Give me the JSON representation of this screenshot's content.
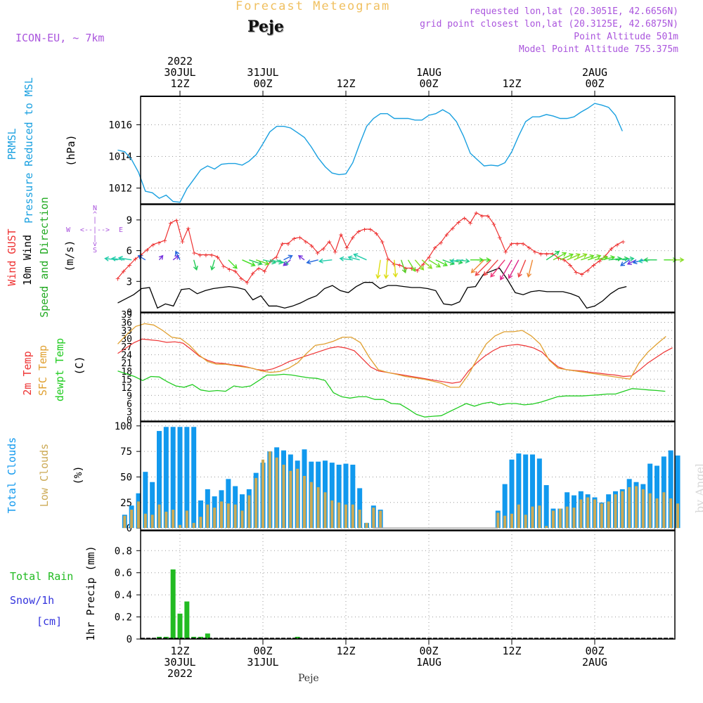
{
  "header": {
    "title": "Forecast Meteogram",
    "location": "Peje",
    "model": "ICON-EU, ~ 7km",
    "requested": "requested lon,lat (20.3051E, 42.6656N)",
    "grid": "grid point closest lon,lat (20.3125E, 42.6875N)",
    "point_alt": "Point Altitude 501m",
    "model_alt": "Model Point Altitude 755.375m",
    "footer": "Peje",
    "watermark": "by Angel"
  },
  "colors": {
    "pressure": "#1aa0e0",
    "gust": "#ee3333",
    "wind": "#000000",
    "temp2m": "#ee3333",
    "sfctemp": "#e0a030",
    "dewpt": "#22cc22",
    "totalcloud": "#1199ee",
    "lowcloud": "#ccaa55",
    "rain": "#22bb22",
    "snow": "#3333dd",
    "info": "#aa55dd",
    "grid": "#999999"
  },
  "chart_data": [
    {
      "type": "line",
      "title": "PRMSL Pressure Reduced to MSL",
      "ylabel": "(hPa)",
      "ylim": [
        1011,
        1017.8
      ],
      "yticks": [
        1012,
        1014,
        1016
      ],
      "x_start_hour": 3,
      "x_step_hours": 1,
      "series": [
        {
          "name": "PRMSL Pressure Reduced to MSL",
          "values": [
            1014.4,
            1014.3,
            1013.8,
            1013.0,
            1011.8,
            1011.7,
            1011.35,
            1011.55,
            1011.15,
            1011.1,
            1011.95,
            1012.55,
            1013.15,
            1013.4,
            1013.2,
            1013.5,
            1013.55,
            1013.55,
            1013.45,
            1013.7,
            1014.1,
            1014.8,
            1015.55,
            1015.9,
            1015.9,
            1015.8,
            1015.5,
            1015.2,
            1014.6,
            1013.9,
            1013.35,
            1012.95,
            1012.85,
            1012.9,
            1013.6,
            1014.8,
            1015.9,
            1016.4,
            1016.7,
            1016.7,
            1016.4,
            1016.4,
            1016.4,
            1016.3,
            1016.3,
            1016.6,
            1016.7,
            1016.95,
            1016.7,
            1016.2,
            1015.3,
            1014.2,
            1013.8,
            1013.4,
            1013.45,
            1013.4,
            1013.6,
            1014.3,
            1015.3,
            1016.2,
            1016.5,
            1016.5,
            1016.65,
            1016.55,
            1016.4,
            1016.4,
            1016.5,
            1016.8,
            1017.05,
            1017.35,
            1017.25,
            1017.1,
            1016.6,
            1015.6
          ]
        }
      ]
    },
    {
      "type": "line",
      "title": "Wind GUST / 10m Wind Speed and Direction",
      "ylabel": "(m/s)",
      "ylim": [
        0,
        10.5
      ],
      "yticks": [
        3,
        6,
        9
      ],
      "compass": {
        "n": "N",
        "s": "S",
        "e": "E",
        "w": "W"
      },
      "series": [
        {
          "name": "Wind GUST",
          "values": [
            3.3,
            4.0,
            4.6,
            5.2,
            5.6,
            6.1,
            6.6,
            6.8,
            7.0,
            8.7,
            9.0,
            6.9,
            8.2,
            5.8,
            5.6,
            5.6,
            5.6,
            5.4,
            4.5,
            4.2,
            4.0,
            3.3,
            2.9,
            3.8,
            4.3,
            4.0,
            5.0,
            5.4,
            6.7,
            6.7,
            7.2,
            7.3,
            6.9,
            6.5,
            5.8,
            6.2,
            6.9,
            5.9,
            7.6,
            6.3,
            7.3,
            7.9,
            8.1,
            8.1,
            7.7,
            6.9,
            5.2,
            4.7,
            4.6,
            4.3,
            4.3,
            4.1,
            4.7,
            5.4,
            6.3,
            6.8,
            7.6,
            8.2,
            8.8,
            9.2,
            8.7,
            9.7,
            9.4,
            9.4,
            8.6,
            7.3,
            5.9,
            6.7,
            6.7,
            6.7,
            6.3,
            5.9,
            5.7,
            5.7,
            5.7,
            5.3,
            5.1,
            4.6,
            3.9,
            3.7,
            4.1,
            4.6,
            5.0,
            5.5,
            6.2,
            6.6,
            6.9
          ]
        },
        {
          "name": "10m Wind",
          "values": [
            0.9,
            1.3,
            1.7,
            2.3,
            2.4,
            0.4,
            0.8,
            0.6,
            2.2,
            2.3,
            1.8,
            2.1,
            2.3,
            2.4,
            2.5,
            2.4,
            2.2,
            1.2,
            1.6,
            0.6,
            0.6,
            0.4,
            0.6,
            0.9,
            1.3,
            1.6,
            2.3,
            2.6,
            2.1,
            1.9,
            2.5,
            2.9,
            2.9,
            2.3,
            2.6,
            2.6,
            2.5,
            2.4,
            2.4,
            2.3,
            2.1,
            0.8,
            0.7,
            1.0,
            2.4,
            2.5,
            3.7,
            4.0,
            4.3,
            3.2,
            1.9,
            1.7,
            2.0,
            2.1,
            2.0,
            2.0,
            2.0,
            1.8,
            1.5,
            0.4,
            0.6,
            1.1,
            1.8,
            2.3,
            2.5
          ]
        }
      ]
    },
    {
      "type": "line",
      "title": "2m Temp / SFC Temp / dewpt Temp",
      "ylabel": "(C)",
      "ylim": [
        -0.5,
        39.5
      ],
      "yticks": [
        0,
        3,
        6,
        9,
        12,
        15,
        18,
        21,
        24,
        27,
        30,
        33,
        36,
        39
      ],
      "series": [
        {
          "name": "2m Temp",
          "values": [
            24.5,
            26.5,
            28.5,
            29.8,
            29.5,
            29.2,
            28.6,
            28.8,
            28.3,
            26.0,
            23.5,
            22.0,
            21.0,
            20.8,
            20.3,
            20.0,
            19.4,
            18.6,
            18.2,
            18.8,
            20.0,
            21.5,
            22.5,
            23.5,
            24.5,
            25.5,
            26.5,
            27.0,
            26.5,
            25.5,
            22.5,
            19.5,
            18.0,
            17.5,
            17.0,
            16.5,
            16.0,
            15.5,
            15.0,
            14.5,
            14.0,
            13.5,
            14.0,
            18.0,
            21.0,
            23.5,
            25.5,
            27.0,
            27.5,
            27.8,
            27.3,
            26.5,
            25.0,
            22.0,
            19.5,
            18.5,
            18.2,
            18.0,
            17.5,
            17.2,
            16.8,
            16.5,
            16.0,
            16.2,
            18.5,
            21.0,
            23.0,
            25.0,
            26.6
          ]
        },
        {
          "name": "SFC Temp",
          "values": [
            28.0,
            31.5,
            34.5,
            35.5,
            35.0,
            33.0,
            30.5,
            30.0,
            27.5,
            24.0,
            21.5,
            20.5,
            20.5,
            20.0,
            19.5,
            19.0,
            18.0,
            17.5,
            17.8,
            19.0,
            21.0,
            24.5,
            27.5,
            28.0,
            29.0,
            30.5,
            30.5,
            28.5,
            23.0,
            18.5,
            17.5,
            16.8,
            16.0,
            15.5,
            15.0,
            14.3,
            13.5,
            12.0,
            12.0,
            16.5,
            22.5,
            28.0,
            31.0,
            32.5,
            32.5,
            33.0,
            31.0,
            28.0,
            22.0,
            19.0,
            18.5,
            18.0,
            17.5,
            17.0,
            16.5,
            16.0,
            15.5,
            15.0,
            21.0,
            25.0,
            28.0,
            30.8
          ]
        },
        {
          "name": "dewpt Temp",
          "values": [
            18.0,
            17.0,
            16.0,
            14.5,
            16.0,
            15.8,
            14.0,
            12.5,
            12.0,
            13.0,
            11.0,
            10.5,
            10.8,
            10.5,
            12.5,
            12.0,
            12.5,
            14.5,
            16.5,
            16.5,
            16.8,
            16.5,
            16.0,
            15.5,
            15.3,
            14.5,
            10.0,
            8.5,
            8.0,
            8.5,
            8.5,
            7.5,
            7.5,
            6.0,
            5.8,
            4.0,
            2.0,
            1.0,
            1.3,
            1.5,
            3.0,
            4.5,
            6.0,
            5.0,
            6.0,
            6.5,
            5.5,
            6.0,
            6.0,
            5.5,
            5.8,
            6.5,
            7.5,
            8.5,
            8.8,
            8.8,
            8.8,
            9.0,
            9.2,
            9.5,
            9.5,
            10.5,
            11.5,
            11.3,
            11.0,
            10.8,
            10.5
          ]
        }
      ]
    },
    {
      "type": "bar",
      "title": "Total Clouds / Low Clouds",
      "ylabel": "(%)",
      "ylim": [
        -2,
        104
      ],
      "yticks": [
        0,
        25,
        50,
        75,
        100
      ],
      "x_start_hour": 4,
      "x_step_hours": 1,
      "series": [
        {
          "name": "Total Clouds",
          "values": [
            13,
            22,
            34,
            55,
            45,
            95,
            99,
            99,
            99,
            99,
            99,
            27,
            38,
            31,
            37,
            48,
            41,
            33,
            38,
            54,
            64,
            75,
            79,
            76,
            72,
            66,
            77,
            65,
            65,
            66,
            64,
            62,
            63,
            62,
            39,
            5,
            22,
            18,
            0,
            0,
            0,
            0,
            0,
            0,
            0,
            0,
            0,
            0,
            0,
            0,
            0,
            0,
            0,
            0,
            17,
            43,
            67,
            73,
            72,
            72,
            68,
            42,
            19,
            19,
            35,
            32,
            36,
            33,
            30,
            25,
            33,
            36,
            38,
            48,
            45,
            43,
            63,
            61,
            70,
            76,
            71
          ]
        },
        {
          "name": "Low Clouds",
          "values": [
            12,
            18,
            26,
            14,
            13,
            23,
            16,
            18,
            3,
            17,
            5,
            11,
            23,
            20,
            26,
            24,
            23,
            17,
            32,
            49,
            67,
            75,
            69,
            62,
            56,
            58,
            51,
            45,
            40,
            35,
            27,
            25,
            23,
            23,
            18,
            5,
            20,
            17,
            0,
            0,
            0,
            0,
            0,
            0,
            0,
            0,
            0,
            0,
            0,
            0,
            0,
            0,
            0,
            0,
            15,
            12,
            14,
            23,
            13,
            21,
            22,
            2,
            17,
            19,
            21,
            20,
            28,
            30,
            28,
            24,
            26,
            33,
            36,
            40,
            41,
            38,
            34,
            29,
            35,
            29,
            24
          ]
        }
      ]
    },
    {
      "type": "bar",
      "title": "Total Rain / Snow/1h [cm]",
      "ylabel": "1hr Precip (mm)",
      "ylim": [
        0,
        0.98
      ],
      "yticks": [
        "0",
        "0.2",
        "0.4",
        "0.6",
        "0.8"
      ],
      "x_start_hour": 9,
      "x_step_hours": 1,
      "series": [
        {
          "name": "Total Rain",
          "values": [
            0.02,
            0.02,
            0.63,
            0.23,
            0.34,
            0.02,
            0.02,
            0.05,
            0,
            0,
            0,
            0,
            0,
            0,
            0,
            0,
            0,
            0,
            0,
            0,
            0.02
          ]
        },
        {
          "name": "Snow/1h",
          "values": []
        }
      ],
      "xlabel": "Peje"
    }
  ],
  "time_axis": {
    "top_labels": [
      {
        "h": 12,
        "lines": [
          "2022",
          "30JUL",
          "12Z"
        ]
      },
      {
        "h": 24,
        "lines": [
          "31JUL",
          "00Z"
        ]
      },
      {
        "h": 36,
        "lines": [
          "12Z"
        ]
      },
      {
        "h": 48,
        "lines": [
          "1AUG",
          "00Z"
        ]
      },
      {
        "h": 60,
        "lines": [
          "12Z"
        ]
      },
      {
        "h": 72,
        "lines": [
          "2AUG",
          "00Z"
        ]
      }
    ],
    "bottom_labels": [
      {
        "h": 12,
        "lines": [
          "12Z",
          "30JUL",
          "2022"
        ]
      },
      {
        "h": 24,
        "lines": [
          "00Z",
          "31JUL"
        ]
      },
      {
        "h": 36,
        "lines": [
          "12Z"
        ]
      },
      {
        "h": 48,
        "lines": [
          "00Z",
          "1AUG"
        ]
      },
      {
        "h": 60,
        "lines": [
          "12Z"
        ]
      },
      {
        "h": 72,
        "lines": [
          "00Z",
          "2AUG"
        ]
      }
    ]
  }
}
